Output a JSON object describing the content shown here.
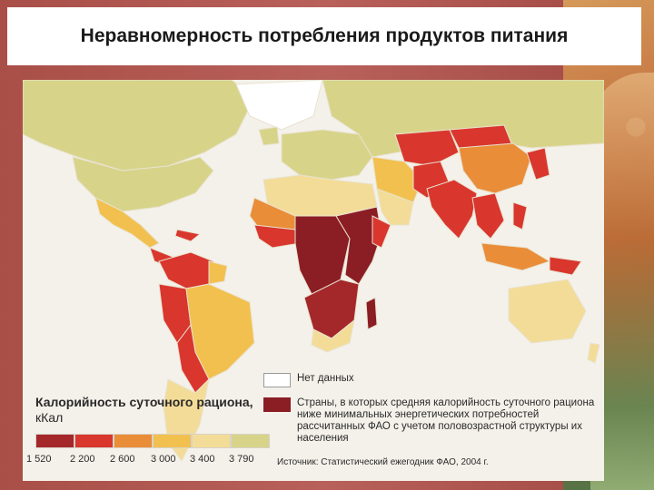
{
  "title": "Неравномерность потребления продуктов питания",
  "legend": {
    "title": "Калорийность суточного рациона,",
    "unit": "кКал",
    "scale_colors": [
      "#a4282a",
      "#d9362e",
      "#ea8d38",
      "#f2c04e",
      "#f3dc97",
      "#d7d48a"
    ],
    "scale_ticks": [
      "1 520",
      "2 200",
      "2 600",
      "3 000",
      "3 400",
      "3 790"
    ],
    "no_data_color": "#ffffff",
    "no_data_label": "Нет данных",
    "below_min_color": "#8b1d24",
    "below_min_label": "Страны, в которых средняя калорийность суточного рациона ниже минимальных энергетических потребностей рассчитанных ФАО с учетом половозрастной структуры их населения"
  },
  "source": "Источник: Статистический ежегодник ФАО, 2004 г."
}
